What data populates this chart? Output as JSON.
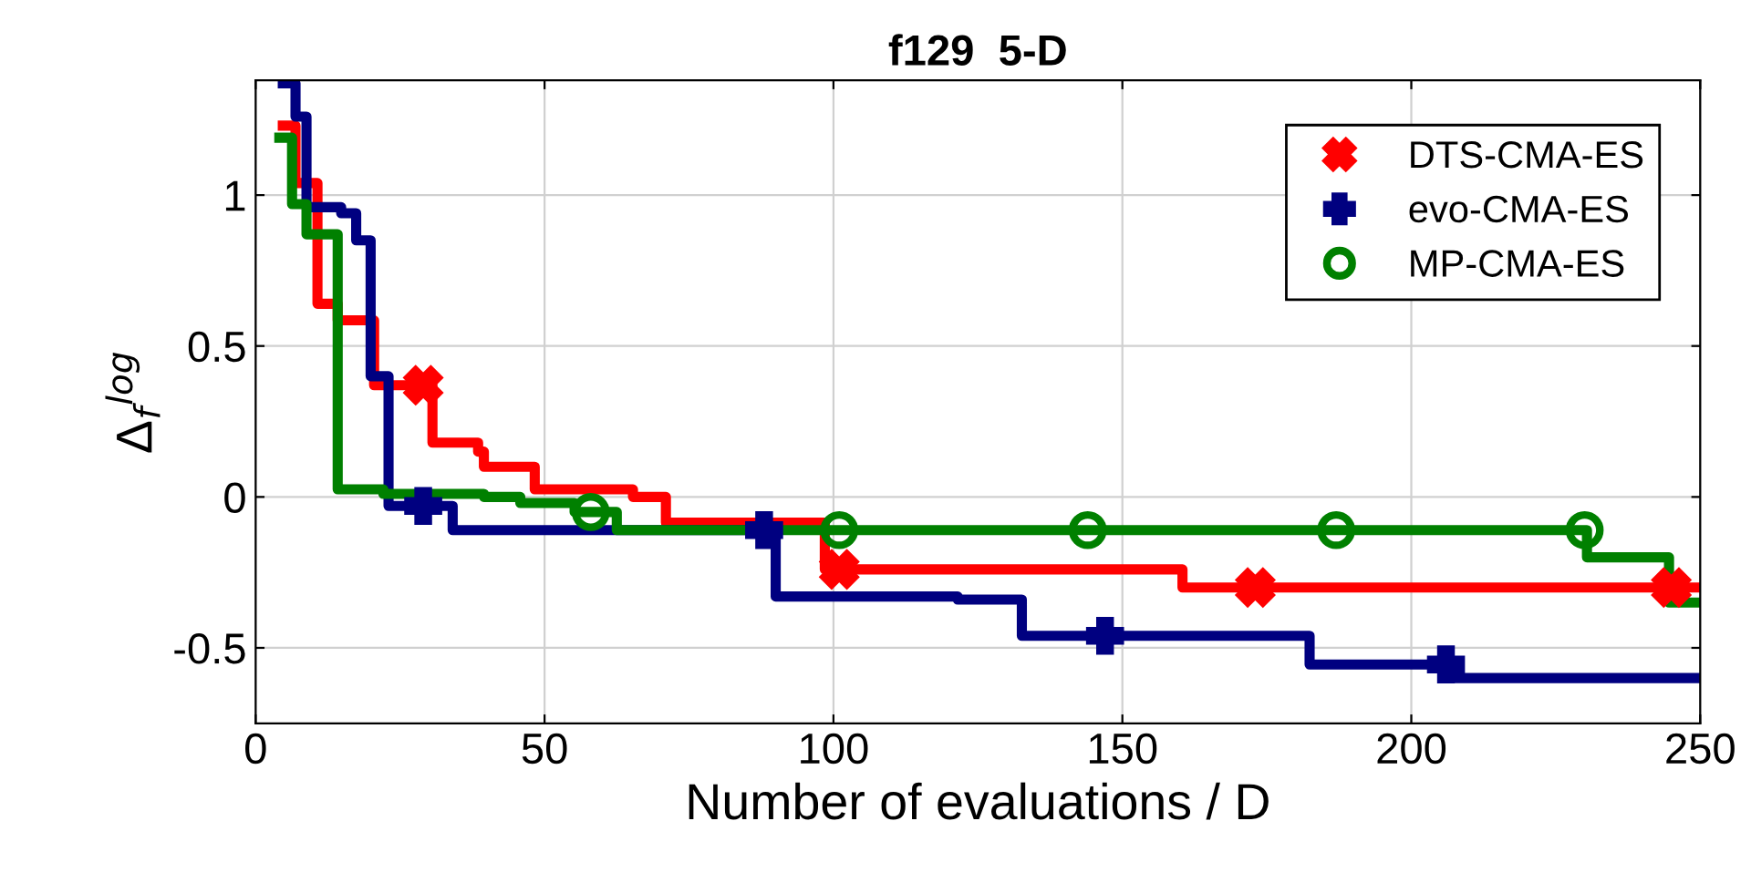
{
  "chart_data": {
    "type": "step",
    "title": "f129  5-D",
    "xlabel": "Number of evaluations / D",
    "ylabel": "Δ$_{f}$$^{log}$",
    "xlim": [
      0,
      250
    ],
    "xticks": [
      0,
      50,
      100,
      150,
      200,
      250
    ],
    "ylim": [
      -0.75,
      1.38
    ],
    "yticks": [
      -0.5,
      0,
      0.5,
      1
    ],
    "grid": true,
    "legend": "top right",
    "line_style": "solid",
    "series": [
      {
        "color": "#ff0000",
        "x": [
          4.7,
          6.9,
          10.7,
          14.2,
          20.5,
          30.6,
          38.5,
          39.5,
          48.3,
          65.3,
          71.0,
          98.5,
          160.4,
          250
        ],
        "values": [
          1.23,
          1.04,
          0.64,
          0.585,
          0.37,
          0.18,
          0.15,
          0.1,
          0.025,
          0.0,
          -0.085,
          -0.24,
          -0.3,
          -0.3
        ]
      },
      {
        "color": "#000080",
        "x": [
          4.7,
          6.9,
          8.8,
          14.8,
          17.4,
          19.9,
          23.0,
          34.1,
          90.0,
          121.5,
          132.6,
          182.4,
          206.8,
          249.4
        ],
        "values": [
          1.37,
          1.26,
          0.96,
          0.94,
          0.85,
          0.4,
          -0.03,
          -0.11,
          -0.33,
          -0.34,
          -0.46,
          -0.555,
          -0.6,
          -0.6
        ]
      },
      {
        "color": "#008000",
        "x": [
          4.1,
          6.3,
          8.8,
          14.2,
          22.1,
          39.5,
          45.8,
          55.2,
          62.5,
          230.4,
          244.6,
          250
        ],
        "values": [
          1.19,
          0.97,
          0.87,
          0.025,
          0.01,
          0.0,
          -0.02,
          -0.05,
          -0.11,
          -0.2,
          -0.35,
          -0.35
        ]
      },
      {
        "type": "scatter",
        "name": "DTS-CMA-ES",
        "color": "#ff0000",
        "marker": "cross",
        "x": [
          29,
          101,
          173,
          245
        ],
        "values": [
          0.37,
          -0.24,
          -0.3,
          -0.3
        ]
      },
      {
        "type": "scatter",
        "name": "evo-CMA-ES",
        "color": "#000080",
        "marker": "plus",
        "x": [
          29,
          88,
          147,
          206
        ],
        "values": [
          -0.03,
          -0.11,
          -0.46,
          -0.555
        ]
      },
      {
        "type": "scatter",
        "name": "MP-CMA-ES",
        "color": "#008000",
        "marker": "circle",
        "x": [
          58,
          101,
          144,
          187,
          230
        ],
        "values": [
          -0.05,
          -0.11,
          -0.11,
          -0.11,
          -0.11
        ]
      }
    ]
  }
}
